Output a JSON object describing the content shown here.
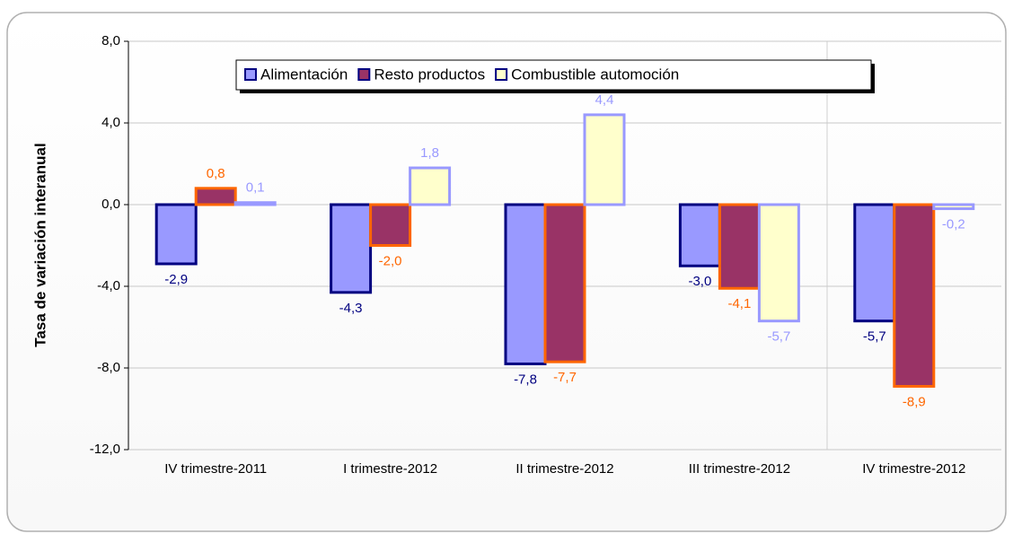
{
  "chart_data": {
    "type": "bar",
    "ylabel": "Tasa de variación interanual",
    "categories": [
      "IV trimestre-2011",
      "I trimestre-2012",
      "II trimestre-2012",
      "III trimestre-2012",
      "IV trimestre-2012"
    ],
    "series": [
      {
        "name": "Alimentación",
        "color": "#9999ff",
        "edgecolor": "#000080",
        "label_color": "#000080",
        "values": [
          -2.9,
          -4.3,
          -7.8,
          -3.0,
          -5.7
        ],
        "value_labels": [
          "-2,9",
          "-4,3",
          "-7,8",
          "-3,0",
          "-5,7"
        ]
      },
      {
        "name": "Resto productos",
        "color": "#993366",
        "edgecolor": "#ff6600",
        "label_color": "#ff6600",
        "values": [
          0.8,
          -2.0,
          -7.7,
          -4.1,
          -8.9
        ],
        "value_labels": [
          "0,8",
          "-2,0",
          "-7,7",
          "-4,1",
          "-8,9"
        ]
      },
      {
        "name": "Combustible automoción",
        "color": "#ffffcc",
        "edgecolor": "#9999ff",
        "label_color": "#9999ff",
        "values": [
          0.1,
          1.8,
          4.4,
          -5.7,
          -0.2
        ],
        "value_labels": [
          "0,1",
          "1,8",
          "4,4",
          "-5,7",
          "-0,2"
        ]
      }
    ],
    "ylim": [
      -12,
      8
    ],
    "yticks": [
      {
        "value": -12,
        "label": "-12,0"
      },
      {
        "value": -8,
        "label": "-8,0"
      },
      {
        "value": -4,
        "label": "-4,0"
      },
      {
        "value": 0,
        "label": "0,0"
      },
      {
        "value": 4,
        "label": "4,0"
      },
      {
        "value": 8,
        "label": "8,0"
      }
    ],
    "grid": true,
    "legend": "top"
  }
}
